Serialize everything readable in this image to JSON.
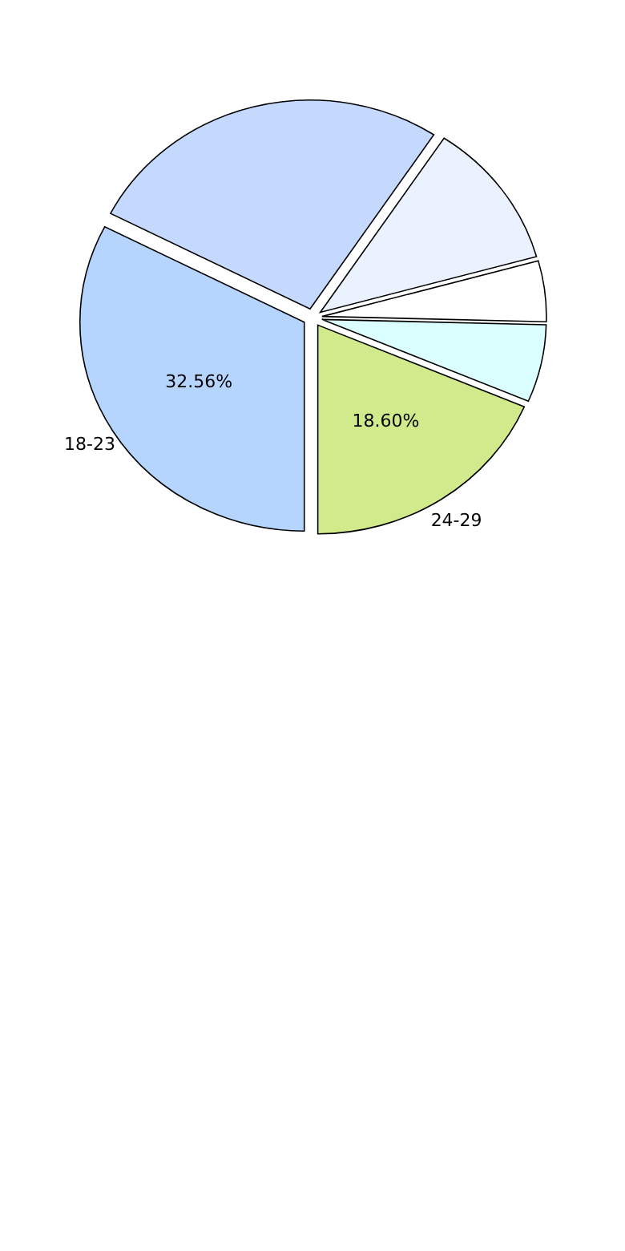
{
  "chart_data": {
    "type": "pie",
    "categories": [
      "18-23",
      null,
      null,
      null,
      null,
      "24-29"
    ],
    "values": [
      32.56,
      26.74,
      11.4,
      4.7,
      6.0,
      18.6
    ],
    "colors": [
      "#b5d5ff",
      "#c5d9ff",
      "#eaf1ff",
      "#ffffff",
      "#dbffff",
      "#d1ea8c"
    ],
    "value_labels": [
      "32.56%",
      null,
      null,
      null,
      null,
      "18.60%"
    ]
  }
}
